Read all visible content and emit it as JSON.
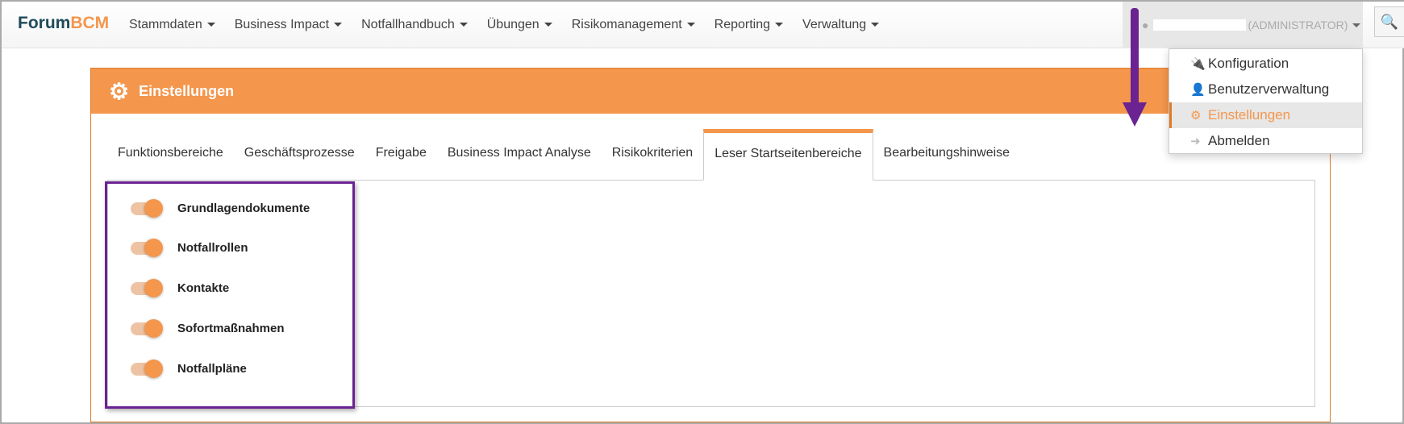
{
  "brand": {
    "part1": "Forum",
    "part2": "BCM"
  },
  "nav": [
    "Stammdaten",
    "Business Impact",
    "Notfallhandbuch",
    "Übungen",
    "Risikomanagement",
    "Reporting",
    "Verwaltung"
  ],
  "user": {
    "role": "(ADMINISTRATOR)",
    "icon": "user-icon"
  },
  "search_icon": "🔍",
  "panel": {
    "title": "Einstellungen",
    "icon": "⚙"
  },
  "tabs": [
    "Funktionsbereiche",
    "Geschäftsprozesse",
    "Freigabe",
    "Business Impact Analyse",
    "Risikokriterien",
    "Leser Startseitenbereiche",
    "Bearbeitungshinweise"
  ],
  "active_tab": "Leser Startseitenbereiche",
  "toggles": [
    {
      "label": "Grundlagendokumente",
      "on": true
    },
    {
      "label": "Notfallrollen",
      "on": true
    },
    {
      "label": "Kontakte",
      "on": true
    },
    {
      "label": "Sofortmaßnahmen",
      "on": true
    },
    {
      "label": "Notfallpläne",
      "on": true
    }
  ],
  "dropdown": [
    {
      "label": "Konfiguration",
      "icon": "🔌"
    },
    {
      "label": "Benutzerverwaltung",
      "icon": "👤"
    },
    {
      "label": "Einstellungen",
      "icon": "⚙"
    },
    {
      "label": "Abmelden",
      "icon": "➜"
    }
  ],
  "colors": {
    "accent": "#f4964c",
    "annotation": "#6a2390"
  }
}
